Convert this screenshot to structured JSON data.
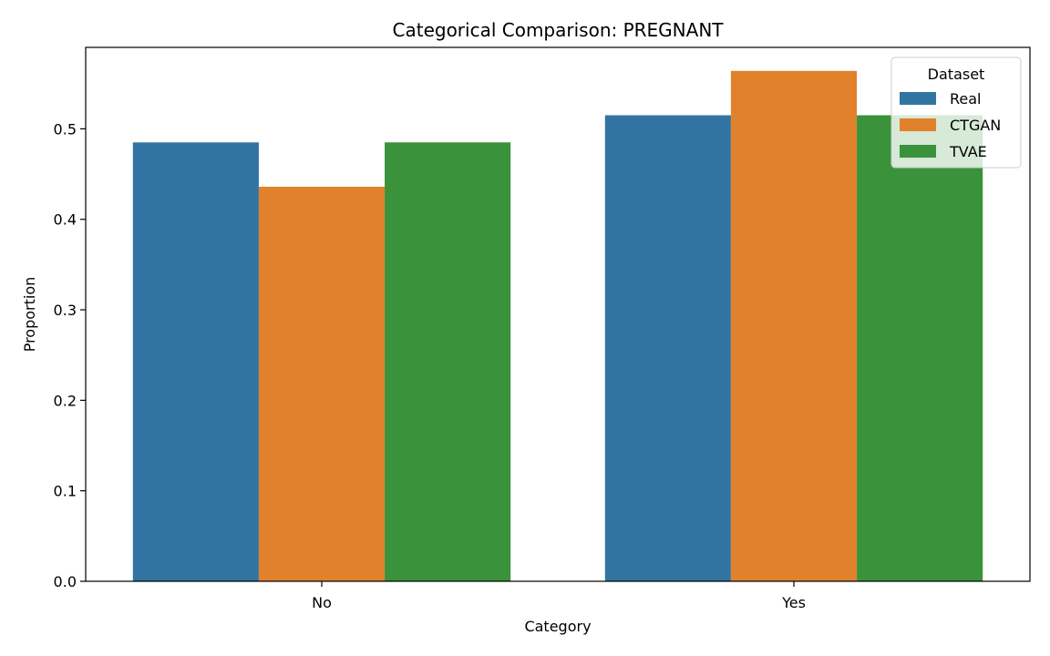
{
  "chart_data": {
    "type": "bar",
    "title": "Categorical Comparison: PREGNANT",
    "xlabel": "Category",
    "ylabel": "Proportion",
    "categories": [
      "No",
      "Yes"
    ],
    "series": [
      {
        "name": "Real",
        "values": [
          0.485,
          0.515
        ],
        "color": "#3274a1"
      },
      {
        "name": "CTGAN",
        "values": [
          0.436,
          0.564
        ],
        "color": "#e1812c"
      },
      {
        "name": "TVAE",
        "values": [
          0.485,
          0.515
        ],
        "color": "#3a923a"
      }
    ],
    "ylim": [
      0,
      0.59
    ],
    "yticks": [
      0.0,
      0.1,
      0.2,
      0.3,
      0.4,
      0.5
    ],
    "ytick_labels": [
      "0.0",
      "0.1",
      "0.2",
      "0.3",
      "0.4",
      "0.5"
    ],
    "grid": false,
    "legend": {
      "title": "Dataset",
      "placement": "top-right"
    }
  }
}
